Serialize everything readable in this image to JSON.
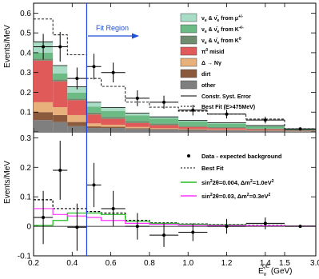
{
  "chart_data": [
    {
      "type": "bar",
      "ylabel": "Events/MeV",
      "ylim": [
        0,
        0.65
      ],
      "xlim": [
        0.2,
        3.0
      ],
      "bin_edges": [
        0.2,
        0.3,
        0.375,
        0.475,
        0.55,
        0.675,
        0.8,
        0.95,
        1.1,
        1.3,
        1.5,
        3.0
      ],
      "axis_break": "x axis compressed after 1.5 GeV",
      "x_ticks": [
        "0.2",
        "0.4",
        "0.6",
        "0.8",
        "1.0",
        "1.2",
        "1.4",
        "1.5",
        "3.0"
      ],
      "y_ticks": [
        "0",
        "0.1",
        "0.2",
        "0.3",
        "0.4",
        "0.5",
        "0.6"
      ],
      "stacked_series": [
        {
          "name": "other",
          "color": "#7f7f7f",
          "values": [
            0.06,
            0.05,
            0.03,
            0.02,
            0.02,
            0.015,
            0.012,
            0.01,
            0.008,
            0.006,
            0.003
          ]
        },
        {
          "name": "dirt",
          "color": "#8b5a3c",
          "values": [
            0.04,
            0.035,
            0.02,
            0.008,
            0.006,
            0.004,
            0.003,
            0.002,
            0.001,
            0.001,
            0.0005
          ]
        },
        {
          "name": "Δ → Nγ",
          "color": "#e8b07a",
          "values": [
            0.05,
            0.04,
            0.035,
            0.015,
            0.01,
            0.006,
            0.004,
            0.003,
            0.002,
            0.001,
            0.0005
          ]
        },
        {
          "name": "π⁰ misid",
          "color": "#e05a5a",
          "values": [
            0.21,
            0.13,
            0.075,
            0.045,
            0.03,
            0.02,
            0.015,
            0.01,
            0.008,
            0.005,
            0.002
          ]
        },
        {
          "name": "νe & ν̄e from K⁰",
          "color": "#6e8c6e",
          "values": [
            0.01,
            0.01,
            0.008,
            0.01,
            0.01,
            0.01,
            0.008,
            0.006,
            0.005,
            0.004,
            0.002
          ]
        },
        {
          "name": "νe & ν̄e from K+/-",
          "color": "#6cba84",
          "values": [
            0.03,
            0.03,
            0.03,
            0.03,
            0.03,
            0.028,
            0.026,
            0.022,
            0.018,
            0.012,
            0.004
          ]
        },
        {
          "name": "νe & ν̄e from μ+/-",
          "color": "#a8dcc4",
          "values": [
            0.055,
            0.04,
            0.03,
            0.022,
            0.017,
            0.012,
            0.008,
            0.005,
            0.004,
            0.003,
            0.001
          ]
        }
      ],
      "data_points": {
        "name": "data",
        "x": [
          0.25,
          0.3375,
          0.425,
          0.5125,
          0.6125,
          0.7375,
          0.875,
          1.025,
          1.2,
          1.4,
          2.25
        ],
        "y": [
          0.43,
          0.43,
          0.27,
          0.33,
          0.3,
          0.17,
          0.15,
          0.11,
          0.09,
          0.06,
          0.015
        ],
        "yerr": [
          0.065,
          0.075,
          0.055,
          0.065,
          0.05,
          0.04,
          0.033,
          0.027,
          0.022,
          0.017,
          0.004
        ]
      },
      "best_fit": {
        "name": "Best Fit (E>475MeV)",
        "style": "dashed",
        "values": [
          0.57,
          0.49,
          0.39,
          0.27,
          0.23,
          0.15,
          0.125,
          0.105,
          0.09,
          0.065,
          0.016
        ]
      },
      "annotation": "Fit Region",
      "fit_region_start": 0.475,
      "legend_entries": [
        "Constr. Syst. Error",
        "Best Fit (E>475MeV)",
        "other",
        "dirt",
        "Δ → Nγ",
        "π⁰ misid"
      ]
    },
    {
      "type": "scatter",
      "ylabel": "Events/MeV",
      "xlabel": "E_ν^QE (GeV)",
      "xlabel_parts": {
        "base": "E",
        "sub": "ν",
        "sup": "QE",
        "unit": "(GeV)"
      },
      "ylim": [
        -0.1,
        0.32
      ],
      "y_ticks": [
        "-0.1",
        "0",
        "0.1",
        "0.2",
        "0.3"
      ],
      "data_points": {
        "name": "Data - expected background",
        "x": [
          0.25,
          0.3375,
          0.425,
          0.5125,
          0.6125,
          0.7375,
          0.875,
          1.025,
          1.2,
          1.4,
          2.25
        ],
        "y": [
          0.03,
          0.19,
          -0.003,
          0.14,
          0.06,
          0.0,
          -0.03,
          -0.02,
          0.0,
          0.01,
          0.0
        ],
        "yerr": [
          0.09,
          0.1,
          0.08,
          0.075,
          0.06,
          0.045,
          0.04,
          0.03,
          0.025,
          0.02,
          0.005
        ]
      },
      "series": [
        {
          "name": "Best Fit",
          "style": "dashed",
          "color": "#000000",
          "values": [
            0.09,
            0.06,
            0.06,
            0.05,
            0.045,
            0.02,
            0.012,
            0.008,
            0.006,
            0.004,
            0.001
          ]
        },
        {
          "name": "sin²2θ=0.004, Δm²=1.0eV²",
          "color": "#22bb22",
          "values": [
            0.003,
            0.02,
            0.045,
            0.045,
            0.04,
            0.017,
            0.01,
            0.007,
            0.005,
            0.003,
            0.001
          ]
        },
        {
          "name": "sin²2θ=0.03, Δm²=0.3eV²",
          "color": "#ff33ff",
          "values": [
            0.06,
            0.04,
            0.035,
            0.03,
            0.02,
            0.01,
            0.007,
            0.004,
            0.003,
            0.002,
            0.0005
          ]
        }
      ]
    }
  ],
  "labels": {
    "top_ylabel": "Events/MeV",
    "bottom_ylabel": "Events/MeV",
    "xlabel_base": "E",
    "xlabel_sub": "ν",
    "xlabel_sup": "QE",
    "xlabel_unit": "(GeV)",
    "fit_region": "Fit Region",
    "legend_top": {
      "mu": {
        "a": "ν",
        "a_sub": "e",
        "b": " & ",
        "c": "ν̄",
        "c_sub": "e",
        "d": " from μ",
        "d_sup": "+/-"
      },
      "kpm": {
        "a": "ν",
        "a_sub": "e",
        "b": " & ",
        "c": "ν̄",
        "c_sub": "e",
        "d": " from K",
        "d_sup": "+/-"
      },
      "k0": {
        "a": "ν",
        "a_sub": "e",
        "b": " & ",
        "c": "ν̄",
        "c_sub": "e",
        "d": " from K",
        "d_sup": "0"
      },
      "pi0": {
        "a": "π",
        "a_sup": "0",
        "b": " misid"
      },
      "delta": "Δ → Nγ",
      "dirt": "dirt",
      "other": "other",
      "syst": "Constr. Syst. Error",
      "bestfit": "Best Fit (E>475MeV)"
    },
    "legend_bottom": {
      "data": "Data - expected background",
      "bestfit": "Best Fit",
      "green": {
        "a": "sin",
        "a_sup": "2",
        "b": "2θ=0.004, Δm",
        "b_sup": "2",
        "c": "=1.0eV",
        "c_sup": "2"
      },
      "magenta": {
        "a": "sin",
        "a_sup": "2",
        "b": "2θ=0.03, Δm",
        "b_sup": "2",
        "c": "=0.3eV",
        "c_sup": "2"
      }
    }
  },
  "colors": {
    "fit_region_line": "#1e3fd8",
    "fit_region_arrow": "#1e4fd8",
    "green_curve": "#22bb22",
    "magenta_curve": "#ff33ff"
  }
}
